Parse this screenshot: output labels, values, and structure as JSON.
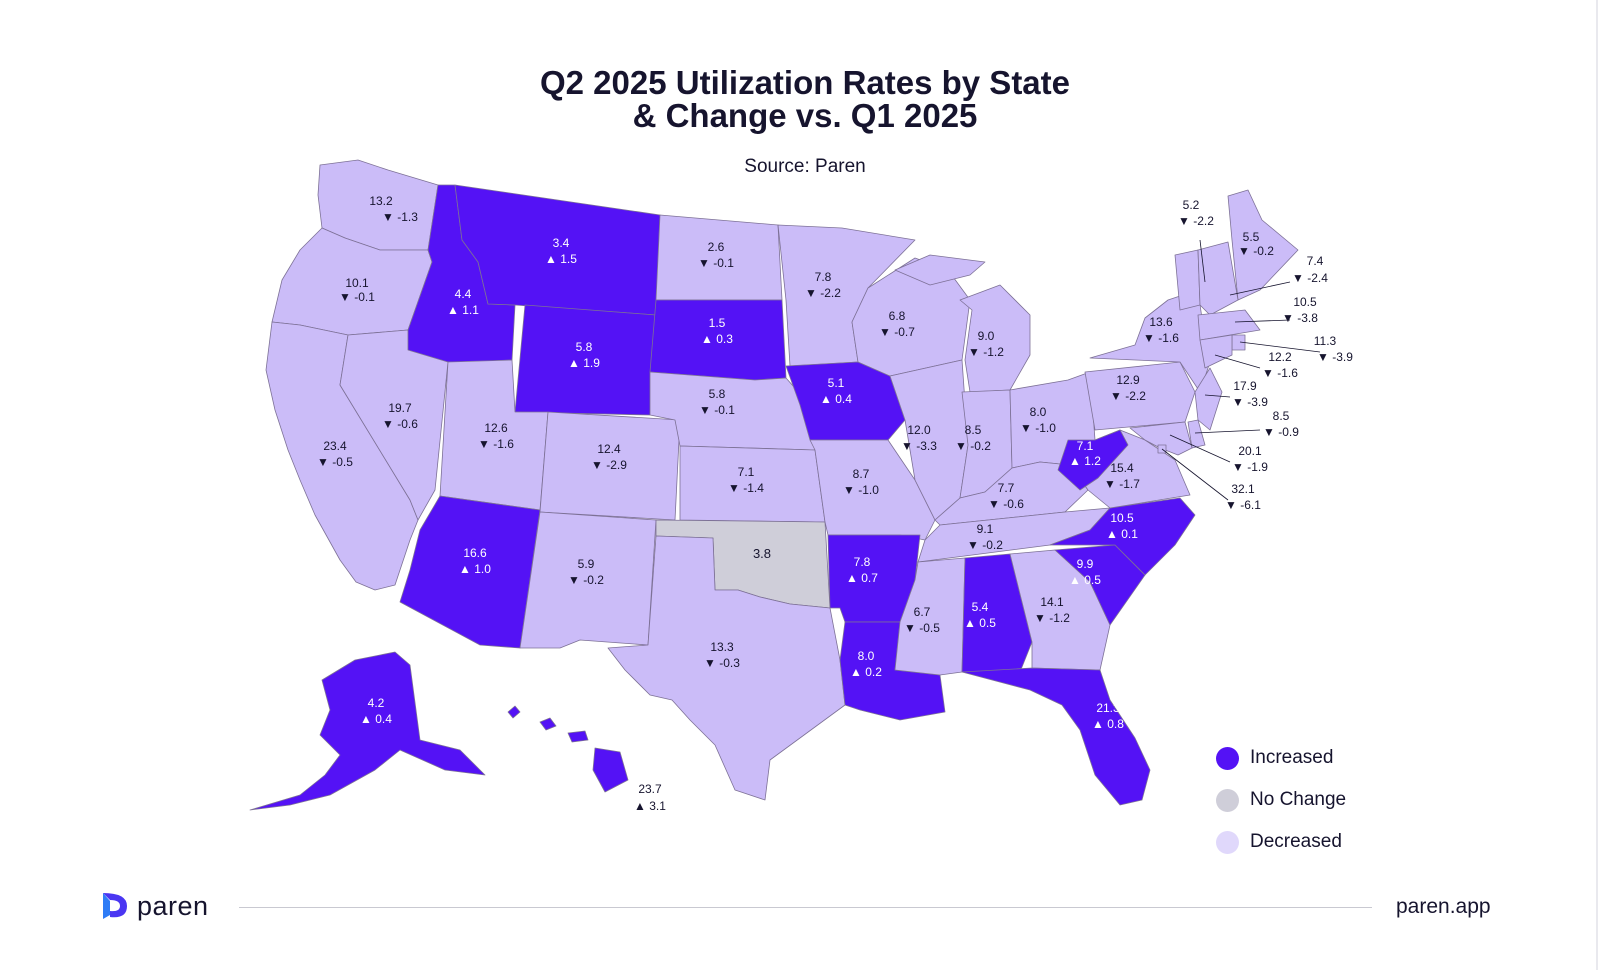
{
  "title_line1": "Q2 2025 Utilization Rates by State",
  "title_line2": "& Change vs. Q1 2025",
  "subtitle": "Source: Paren",
  "colors": {
    "increased": "#5412f5",
    "no_change": "#cfced9",
    "decreased": "#cbbcf8",
    "border": "#7d7196",
    "text_dark": "#16142e",
    "text_light": "#ffffff"
  },
  "legend": [
    {
      "label": "Increased",
      "color": "#5412f5"
    },
    {
      "label": "No Change",
      "color": "#cfced9"
    },
    {
      "label": "Decreased",
      "color": "#e0d8fb"
    }
  ],
  "states": [
    {
      "code": "WA",
      "value": "13.2",
      "change": "-1.3",
      "status": "decreased"
    },
    {
      "code": "OR",
      "value": "10.1",
      "change": "-0.1",
      "status": "decreased"
    },
    {
      "code": "CA",
      "value": "23.4",
      "change": "-0.5",
      "status": "decreased"
    },
    {
      "code": "NV",
      "value": "19.7",
      "change": "-0.6",
      "status": "decreased"
    },
    {
      "code": "ID",
      "value": "4.4",
      "change": "1.1",
      "status": "increased"
    },
    {
      "code": "MT",
      "value": "3.4",
      "change": "1.5",
      "status": "increased"
    },
    {
      "code": "WY",
      "value": "5.8",
      "change": "1.9",
      "status": "increased"
    },
    {
      "code": "UT",
      "value": "12.6",
      "change": "-1.6",
      "status": "decreased"
    },
    {
      "code": "AZ",
      "value": "16.6",
      "change": "1.0",
      "status": "increased"
    },
    {
      "code": "CO",
      "value": "12.4",
      "change": "-2.9",
      "status": "decreased"
    },
    {
      "code": "NM",
      "value": "5.9",
      "change": "-0.2",
      "status": "decreased"
    },
    {
      "code": "ND",
      "value": "2.6",
      "change": "-0.1",
      "status": "decreased"
    },
    {
      "code": "SD",
      "value": "1.5",
      "change": "0.3",
      "status": "increased"
    },
    {
      "code": "NE",
      "value": "5.8",
      "change": "-0.1",
      "status": "decreased"
    },
    {
      "code": "KS",
      "value": "7.1",
      "change": "-1.4",
      "status": "decreased"
    },
    {
      "code": "OK",
      "value": "3.8",
      "change": "",
      "status": "no_change"
    },
    {
      "code": "TX",
      "value": "13.3",
      "change": "-0.3",
      "status": "decreased"
    },
    {
      "code": "MN",
      "value": "7.8",
      "change": "-2.2",
      "status": "decreased"
    },
    {
      "code": "IA",
      "value": "5.1",
      "change": "0.4",
      "status": "increased"
    },
    {
      "code": "MO",
      "value": "8.7",
      "change": "-1.0",
      "status": "decreased"
    },
    {
      "code": "AR",
      "value": "7.8",
      "change": "0.7",
      "status": "increased"
    },
    {
      "code": "LA",
      "value": "8.0",
      "change": "0.2",
      "status": "increased"
    },
    {
      "code": "WI",
      "value": "6.8",
      "change": "-0.7",
      "status": "decreased"
    },
    {
      "code": "IL",
      "value": "12.0",
      "change": "-3.3",
      "status": "decreased"
    },
    {
      "code": "MI",
      "value": "9.0",
      "change": "-1.2",
      "status": "decreased"
    },
    {
      "code": "IN",
      "value": "8.5",
      "change": "-0.2",
      "status": "decreased"
    },
    {
      "code": "OH",
      "value": "8.0",
      "change": "-1.0",
      "status": "decreased"
    },
    {
      "code": "KY",
      "value": "7.7",
      "change": "-0.6",
      "status": "decreased"
    },
    {
      "code": "TN",
      "value": "9.1",
      "change": "-0.2",
      "status": "decreased"
    },
    {
      "code": "MS",
      "value": "6.7",
      "change": "-0.5",
      "status": "decreased"
    },
    {
      "code": "AL",
      "value": "5.4",
      "change": "0.5",
      "status": "increased"
    },
    {
      "code": "GA",
      "value": "14.1",
      "change": "-1.2",
      "status": "decreased"
    },
    {
      "code": "FL",
      "value": "21.3",
      "change": "0.8",
      "status": "increased"
    },
    {
      "code": "SC",
      "value": "9.9",
      "change": "0.5",
      "status": "increased"
    },
    {
      "code": "NC",
      "value": "10.5",
      "change": "0.1",
      "status": "increased"
    },
    {
      "code": "VA",
      "value": "15.4",
      "change": "-1.7",
      "status": "decreased"
    },
    {
      "code": "WV",
      "value": "7.1",
      "change": "1.2",
      "status": "increased"
    },
    {
      "code": "PA",
      "value": "12.9",
      "change": "-2.2",
      "status": "decreased"
    },
    {
      "code": "NY",
      "value": "13.6",
      "change": "-1.6",
      "status": "decreased"
    },
    {
      "code": "VT",
      "value": "5.2",
      "change": "-2.2",
      "status": "decreased"
    },
    {
      "code": "ME",
      "value": "5.5",
      "change": "-0.2",
      "status": "decreased"
    },
    {
      "code": "NH",
      "value": "7.4",
      "change": "-2.4",
      "status": "decreased"
    },
    {
      "code": "MA",
      "value": "10.5",
      "change": "-3.8",
      "status": "decreased"
    },
    {
      "code": "RI",
      "value": "11.3",
      "change": "-3.9",
      "status": "decreased"
    },
    {
      "code": "CT",
      "value": "12.2",
      "change": "-1.6",
      "status": "decreased"
    },
    {
      "code": "NJ",
      "value": "17.9",
      "change": "-3.9",
      "status": "decreased"
    },
    {
      "code": "DE",
      "value": "8.5",
      "change": "-0.9",
      "status": "decreased"
    },
    {
      "code": "MD",
      "value": "20.1",
      "change": "-1.9",
      "status": "decreased"
    },
    {
      "code": "DC",
      "value": "32.1",
      "change": "-6.1",
      "status": "decreased"
    },
    {
      "code": "AK",
      "value": "4.2",
      "change": "0.4",
      "status": "increased"
    },
    {
      "code": "HI",
      "value": "23.7",
      "change": "3.1",
      "status": "increased"
    }
  ],
  "footer": {
    "brand": "paren",
    "site": "paren.app"
  }
}
